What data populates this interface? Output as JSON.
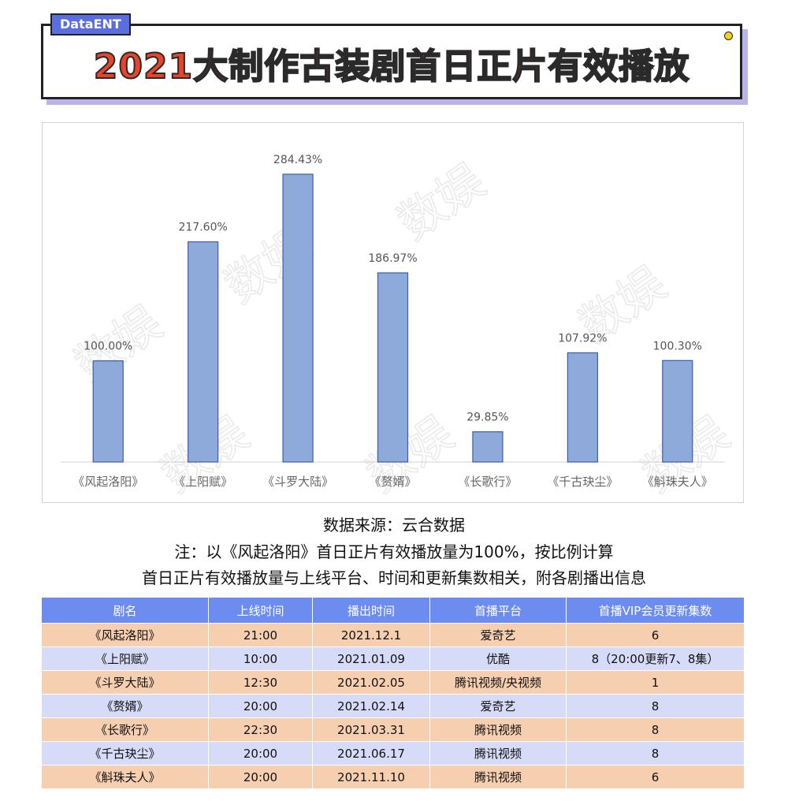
{
  "header": {
    "brand": "DataENT",
    "title": "2021大制作古装剧首日正片有效播放"
  },
  "chart_data": {
    "type": "bar",
    "title": "2021大制作古装剧首日正片有效播放",
    "categories": [
      "《风起洛阳》",
      "《上阳赋》",
      "《斗罗大陆》",
      "《赘婿》",
      "《长歌行》",
      "《千古玦尘》",
      "《斛珠夫人》"
    ],
    "values": [
      100.0,
      217.6,
      284.43,
      186.97,
      29.85,
      107.92,
      100.3
    ],
    "value_labels": [
      "100.00%",
      "217.60%",
      "284.43%",
      "186.97%",
      "29.85%",
      "107.92%",
      "100.30%"
    ],
    "xlabel": "",
    "ylabel": "",
    "ylim": [
      0,
      300
    ],
    "grid": false,
    "legend": "none",
    "bar_color": "#8eaadb",
    "bar_edge_color": "#3a5fa8"
  },
  "notes": {
    "source": "数据来源：云合数据",
    "note1": "注：以《风起洛阳》首日正片有效播放量为100%，按比例计算",
    "note2": "首日正片有效播放量与上线平台、时间和更新集数相关，附各剧播出信息"
  },
  "watermark": "数娱",
  "table": {
    "headers": [
      "剧名",
      "上线时间",
      "播出时间",
      "首播平台",
      "首播VIP会员更新集数"
    ],
    "rows": [
      [
        "《风起洛阳》",
        "21:00",
        "2021.12.1",
        "爱奇艺",
        "6"
      ],
      [
        "《上阳赋》",
        "10:00",
        "2021.01.09",
        "优酷",
        "8（20:00更新7、8集）"
      ],
      [
        "《斗罗大陆》",
        "12:30",
        "2021.02.05",
        "腾讯视频/央视频",
        "1"
      ],
      [
        "《赘婿》",
        "20:00",
        "2021.02.14",
        "爱奇艺",
        "8"
      ],
      [
        "《长歌行》",
        "22:30",
        "2021.03.31",
        "腾讯视频",
        "8"
      ],
      [
        "《千古玦尘》",
        "20:00",
        "2021.06.17",
        "腾讯视频",
        "8"
      ],
      [
        "《斛珠夫人》",
        "20:00",
        "2021.11.10",
        "腾讯视频",
        "6"
      ]
    ]
  },
  "colors": {
    "title_red": "#e8432b",
    "brand_blue": "#5b6ee0",
    "table_header": "#6d8cf0",
    "row_orange": "#f6cfb0",
    "row_blue": "#d6dbf7"
  }
}
